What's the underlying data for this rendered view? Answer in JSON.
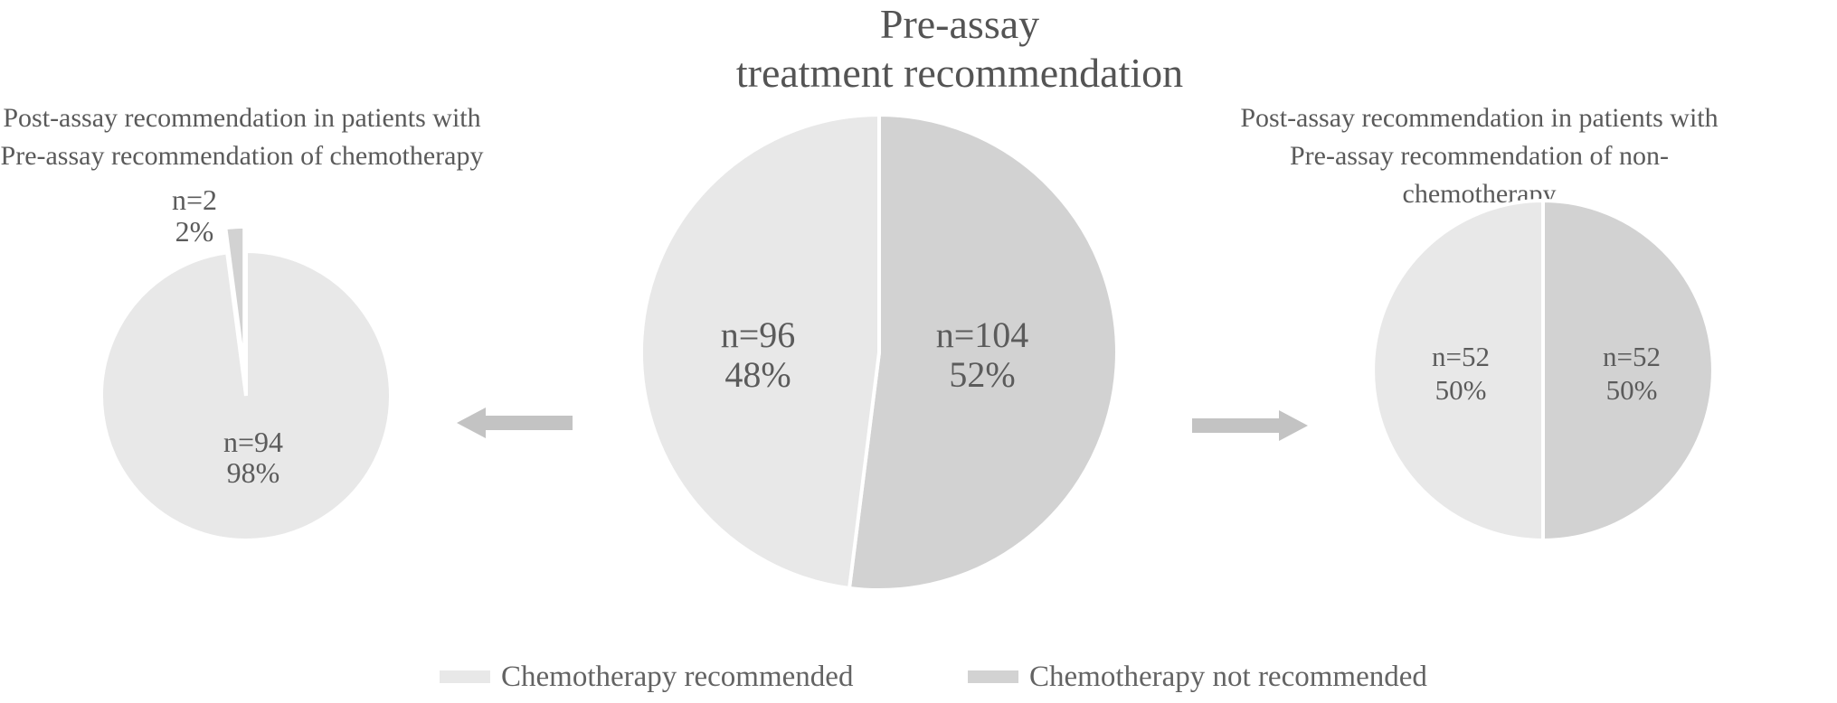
{
  "figure": {
    "center_title_line1": "Pre-assay",
    "center_title_line2": "treatment recommendation",
    "left_title_line1": "Post-assay recommendation in patients with",
    "left_title_line2": "Pre-assay recommendation of chemotherapy",
    "right_title_line1": "Post-assay recommendation in patients with",
    "right_title_line2": "Pre-assay recommendation of non-chemotherapy"
  },
  "legend": {
    "items": [
      {
        "label": "Chemotherapy recommended",
        "series": "recommended"
      },
      {
        "label": "Chemotherapy not recommended",
        "series": "not_recommended"
      }
    ]
  },
  "chart_data": {
    "type": "pie",
    "colors": {
      "recommended": "#e8e8e8",
      "not_recommended": "#d2d2d2",
      "arrow": "#c3c3c3",
      "text": "#5b5b5b"
    },
    "pies": [
      {
        "id": "post-assay-chemo",
        "position": "left",
        "title": "Post-assay recommendation in patients with Pre-assay recommendation of chemotherapy",
        "slices": [
          {
            "series": "recommended",
            "n": 94,
            "pct": 98,
            "label_n": "n=94",
            "label_pct": "98%",
            "exploded": false,
            "label_placement": "inside"
          },
          {
            "series": "not_recommended",
            "n": 2,
            "pct": 2,
            "label_n": "n=2",
            "label_pct": "2%",
            "exploded": true,
            "label_placement": "outside"
          }
        ]
      },
      {
        "id": "pre-assay",
        "position": "center",
        "title": "Pre-assay treatment recommendation",
        "slices": [
          {
            "series": "not_recommended",
            "n": 104,
            "pct": 52,
            "label_n": "n=104",
            "label_pct": "52%",
            "exploded": false,
            "label_placement": "inside"
          },
          {
            "series": "recommended",
            "n": 96,
            "pct": 48,
            "label_n": "n=96",
            "label_pct": "48%",
            "exploded": false,
            "label_placement": "inside"
          }
        ]
      },
      {
        "id": "post-assay-nonchemo",
        "position": "right",
        "title": "Post-assay recommendation in patients with Pre-assay recommendation of non-chemotherapy",
        "slices": [
          {
            "series": "not_recommended",
            "n": 52,
            "pct": 50,
            "label_n": "n=52",
            "label_pct": "50%",
            "exploded": false,
            "label_placement": "inside"
          },
          {
            "series": "recommended",
            "n": 52,
            "pct": 50,
            "label_n": "n=52",
            "label_pct": "50%",
            "exploded": false,
            "label_placement": "inside"
          }
        ]
      }
    ]
  }
}
